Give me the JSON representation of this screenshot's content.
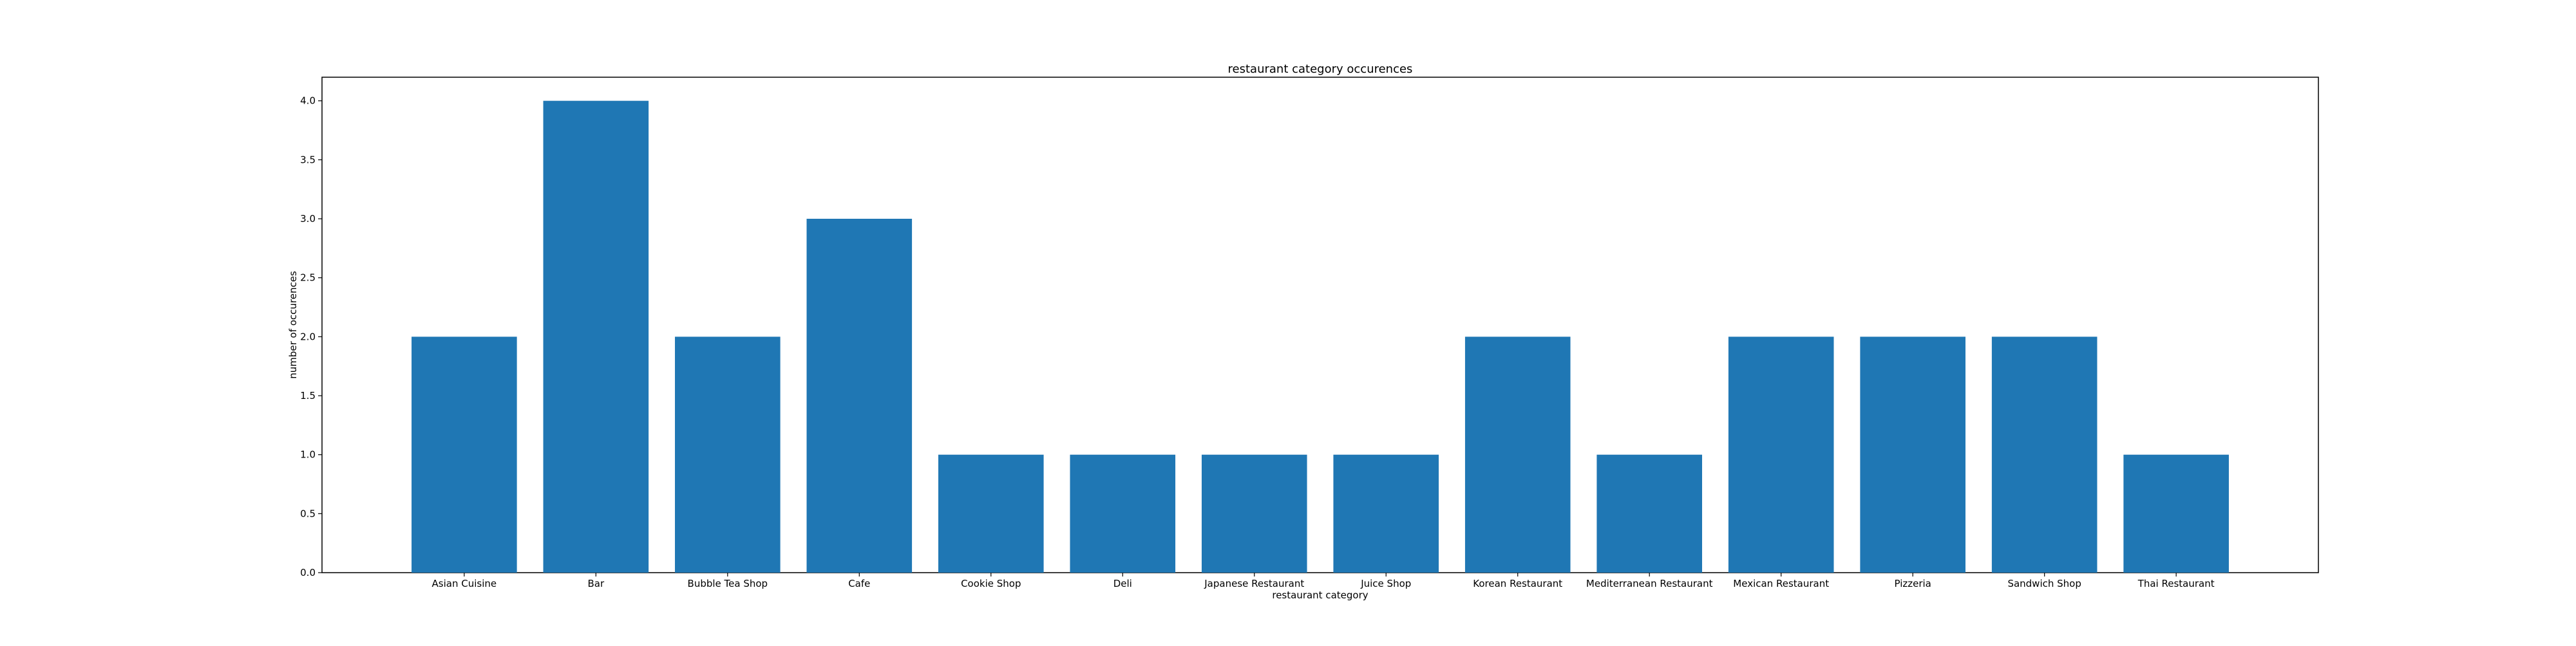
{
  "chart_data": {
    "type": "bar",
    "title": "restaurant category occurences",
    "xlabel": "restaurant category",
    "ylabel": "number of occurences",
    "categories": [
      "Asian Cuisine",
      "Bar",
      "Bubble Tea Shop",
      "Cafe",
      "Cookie Shop",
      "Deli",
      "Japanese Restaurant",
      "Juice Shop",
      "Korean Restaurant",
      "Mediterranean Restaurant",
      "Mexican Restaurant",
      "Pizzeria",
      "Sandwich Shop",
      "Thai Restaurant"
    ],
    "values": [
      2,
      4,
      2,
      3,
      1,
      1,
      1,
      1,
      2,
      1,
      2,
      2,
      2,
      1
    ],
    "ylim": [
      0,
      4.2
    ],
    "yticks": [
      "0.0",
      "0.5",
      "1.0",
      "1.5",
      "2.0",
      "2.5",
      "3.0",
      "3.5",
      "4.0"
    ],
    "bar_color": "#1f77b4",
    "grid": false
  }
}
